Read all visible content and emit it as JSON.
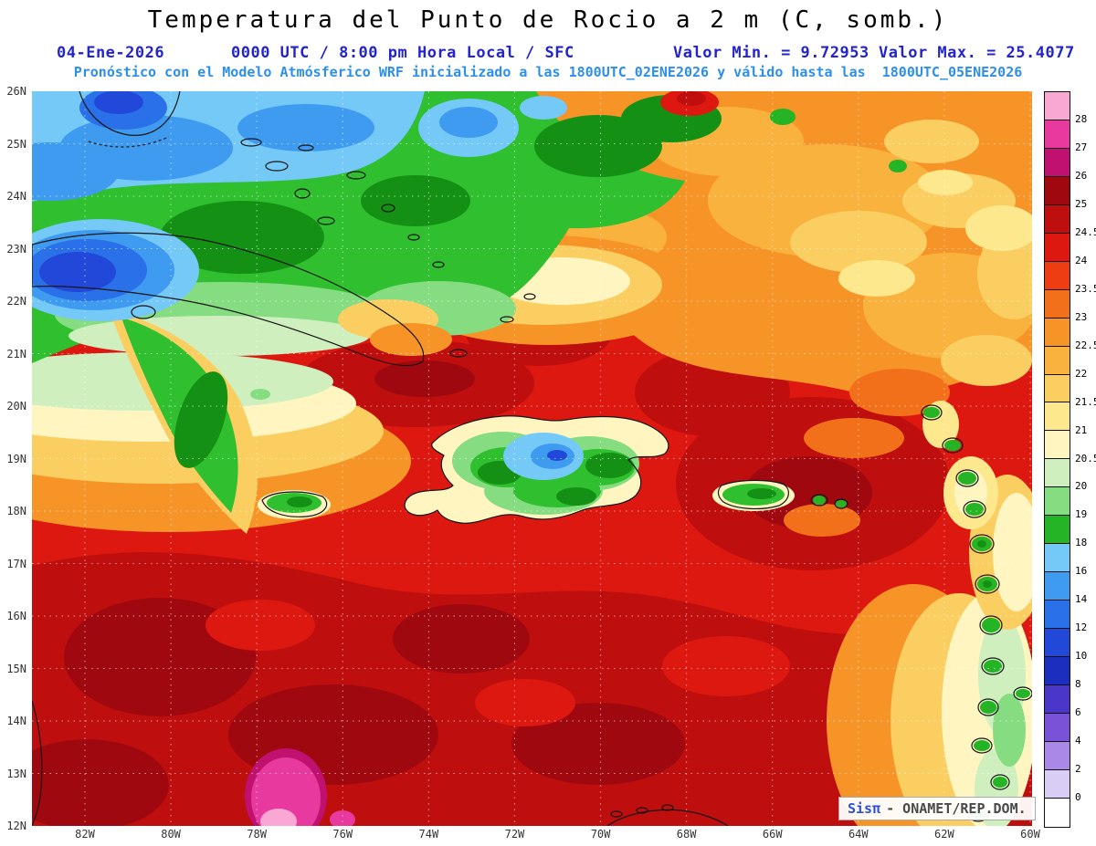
{
  "header": {
    "title": "Temperatura del Punto de Rocio a 2 m (C, somb.)",
    "date": "04-Ene-2026",
    "valid_time": "0000 UTC / 8:00 pm Hora Local / SFC",
    "min_label": "Valor Min. = 9.72953",
    "max_label": "Valor Max. = 25.4077",
    "model_line": "Pronóstico con el Modelo Atmósferico WRF inicializado a las 1800UTC_02ENE2026 y válido hasta las  1800UTC_05ENE2026"
  },
  "axes": {
    "lat_labels": [
      "26N",
      "25N",
      "24N",
      "23N",
      "22N",
      "21N",
      "20N",
      "19N",
      "18N",
      "17N",
      "16N",
      "15N",
      "14N",
      "13N",
      "12N"
    ],
    "lon_labels": [
      "82W",
      "80W",
      "78W",
      "76W",
      "74W",
      "72W",
      "70W",
      "68W",
      "66W",
      "64W",
      "62W",
      "60W"
    ]
  },
  "colorbar": {
    "segment_colors": [
      "#F9A8D4",
      "#E8399E",
      "#C01070",
      "#A00810",
      "#BE0E0E",
      "#DC1810",
      "#EE3D12",
      "#F3701B",
      "#F79428",
      "#FAB23E",
      "#FBCE62",
      "#FDE88E",
      "#FEF5C0",
      "#CFF0BE",
      "#86DC80",
      "#25B425",
      "#74C9F7",
      "#3F9BF0",
      "#2A70E8",
      "#2148D8",
      "#1C2EBE",
      "#4A36C8",
      "#7A52D8",
      "#A988E8",
      "#D9CDF5",
      "#FFFFFF"
    ],
    "boundary_labels": [
      "28",
      "27",
      "26",
      "25",
      "24.5",
      "24",
      "23.5",
      "23",
      "22.5",
      "22",
      "21.5",
      "21",
      "20.5",
      "20",
      "19",
      "18",
      "16",
      "14",
      "12",
      "10",
      "8",
      "6",
      "4",
      "2",
      "0"
    ]
  },
  "watermark": {
    "brand": "Sisπ",
    "suffix": "- ONAMET/REP.DOM."
  },
  "chart_data": {
    "type": "heatmap",
    "title": "Temperatura del Punto de Rocio a 2 m (C, somb.)",
    "variable": "dew point temperature at 2 m",
    "units": "C",
    "value_min": 9.72953,
    "value_max": 25.4077,
    "valid": "04-Ene-2026 0000 UTC / 8:00 pm Hora Local / SFC",
    "model": "WRF inicializado 1800UTC_02ENE2026, válido hasta 1800UTC_05ENE2026",
    "x_axis_ticks": [
      "82W",
      "80W",
      "78W",
      "76W",
      "74W",
      "72W",
      "70W",
      "68W",
      "66W",
      "64W",
      "62W",
      "60W"
    ],
    "y_axis_ticks": [
      "26N",
      "25N",
      "24N",
      "23N",
      "22N",
      "21N",
      "20N",
      "19N",
      "18N",
      "17N",
      "16N",
      "15N",
      "14N",
      "13N",
      "12N"
    ],
    "scale_boundaries": [
      28,
      27,
      26,
      25,
      24.5,
      24,
      23.5,
      23,
      22.5,
      22,
      21.5,
      21,
      20.5,
      20,
      19,
      18,
      16,
      14,
      12,
      10,
      8,
      6,
      4,
      2,
      0
    ],
    "scale_colors_top_to_bottom": [
      "#F9A8D4",
      "#E8399E",
      "#C01070",
      "#A00810",
      "#BE0E0E",
      "#DC1810",
      "#EE3D12",
      "#F3701B",
      "#F79428",
      "#FAB23E",
      "#FBCE62",
      "#FDE88E",
      "#FEF5C0",
      "#CFF0BE",
      "#86DC80",
      "#25B425",
      "#74C9F7",
      "#3F9BF0",
      "#2A70E8",
      "#2148D8",
      "#1C2EBE",
      "#4A36C8",
      "#7A52D8",
      "#A988E8",
      "#D9CDF5",
      "#FFFFFF"
    ],
    "legend_position": "right",
    "grid": true
  }
}
